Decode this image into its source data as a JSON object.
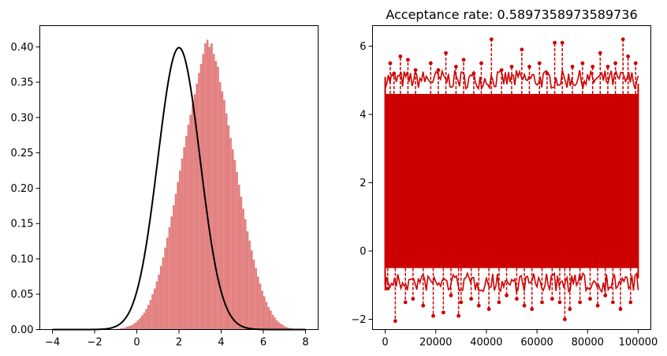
{
  "chart_data": [
    {
      "type": "bar",
      "subtype": "histogram-with-density-curve",
      "title": "",
      "xlabel": "",
      "ylabel": "",
      "xlim": [
        -4.6,
        8.6
      ],
      "ylim": [
        0,
        0.43
      ],
      "xticks": [
        "−4",
        "−2",
        "0",
        "2",
        "4",
        "6",
        "8"
      ],
      "xtick_values": [
        -4,
        -2,
        0,
        2,
        4,
        6,
        8
      ],
      "yticks": [
        "0.00",
        "0.05",
        "0.10",
        "0.15",
        "0.20",
        "0.25",
        "0.30",
        "0.35",
        "0.40"
      ],
      "ytick_values": [
        0,
        0.05,
        0.1,
        0.15,
        0.2,
        0.25,
        0.3,
        0.35,
        0.4
      ],
      "grid": false,
      "bar_color": "#e38080",
      "curve_color": "#000000",
      "histogram": {
        "bin_start": -1.0,
        "bin_width": 0.1,
        "densities": [
          0.001,
          0.001,
          0.002,
          0.002,
          0.003,
          0.004,
          0.005,
          0.006,
          0.008,
          0.01,
          0.013,
          0.016,
          0.02,
          0.024,
          0.029,
          0.035,
          0.042,
          0.05,
          0.058,
          0.068,
          0.078,
          0.09,
          0.102,
          0.116,
          0.13,
          0.145,
          0.16,
          0.176,
          0.192,
          0.209,
          0.225,
          0.242,
          0.258,
          0.274,
          0.29,
          0.304,
          0.318,
          0.333,
          0.348,
          0.363,
          0.376,
          0.39,
          0.405,
          0.41,
          0.4,
          0.405,
          0.39,
          0.38,
          0.372,
          0.35,
          0.337,
          0.325,
          0.306,
          0.289,
          0.271,
          0.255,
          0.24,
          0.223,
          0.205,
          0.188,
          0.171,
          0.156,
          0.139,
          0.126,
          0.112,
          0.099,
          0.087,
          0.075,
          0.065,
          0.055,
          0.047,
          0.039,
          0.032,
          0.027,
          0.021,
          0.017,
          0.013,
          0.01,
          0.008,
          0.006,
          0.004,
          0.003,
          0.002,
          0.002,
          0.001,
          0.001
        ]
      },
      "curve": {
        "name": "",
        "x_start": -4,
        "x_end": 8,
        "mean": 2,
        "std": 1
      }
    },
    {
      "type": "line",
      "subtype": "trace-plot",
      "title": "Acceptance rate: 0.5897358973589736",
      "xlabel": "",
      "ylabel": "",
      "xlim": [
        -5000,
        105000
      ],
      "ylim": [
        -2.3,
        6.6
      ],
      "xticks": [
        "0",
        "20000",
        "40000",
        "60000",
        "80000",
        "100000"
      ],
      "xtick_values": [
        0,
        20000,
        40000,
        60000,
        80000,
        100000
      ],
      "yticks": [
        "−2",
        "0",
        "2",
        "4",
        "6"
      ],
      "ytick_values": [
        -2,
        0,
        2,
        4,
        6
      ],
      "grid": false,
      "line_color": "#cc0000",
      "line_style": "dashed with dot markers",
      "series": [
        {
          "name": "",
          "n_samples": 100000,
          "band_lower": -0.5,
          "band_upper": 4.6,
          "upper_excursions": [
            [
              2000,
              5.5
            ],
            [
              3500,
              5.2
            ],
            [
              6000,
              5.7
            ],
            [
              9000,
              5.6
            ],
            [
              12000,
              5.3
            ],
            [
              18000,
              5.5
            ],
            [
              21000,
              5.3
            ],
            [
              24000,
              5.8
            ],
            [
              28000,
              5.4
            ],
            [
              31000,
              5.6
            ],
            [
              35000,
              5.2
            ],
            [
              38000,
              5.5
            ],
            [
              42000,
              6.2
            ],
            [
              46000,
              5.3
            ],
            [
              50000,
              5.4
            ],
            [
              54000,
              5.9
            ],
            [
              57000,
              5.4
            ],
            [
              61000,
              5.5
            ],
            [
              64000,
              5.2
            ],
            [
              67000,
              6.1
            ],
            [
              70000,
              6.1
            ],
            [
              74000,
              5.4
            ],
            [
              78000,
              5.5
            ],
            [
              82000,
              5.4
            ],
            [
              85000,
              5.8
            ],
            [
              88000,
              5.4
            ],
            [
              91000,
              5.5
            ],
            [
              94000,
              6.2
            ],
            [
              96000,
              5.7
            ],
            [
              99000,
              5.5
            ]
          ],
          "lower_excursions": [
            [
              1000,
              -1.1
            ],
            [
              4000,
              -2.05
            ],
            [
              8000,
              -1.5
            ],
            [
              11000,
              -1.4
            ],
            [
              15000,
              -1.6
            ],
            [
              19000,
              -1.9
            ],
            [
              23000,
              -1.8
            ],
            [
              26000,
              -1.3
            ],
            [
              29000,
              -1.9
            ],
            [
              30000,
              -1.5
            ],
            [
              34000,
              -1.4
            ],
            [
              37000,
              -1.6
            ],
            [
              41000,
              -1.7
            ],
            [
              45000,
              -1.5
            ],
            [
              48000,
              -1.3
            ],
            [
              52000,
              -1.4
            ],
            [
              55000,
              -1.6
            ],
            [
              58000,
              -1.7
            ],
            [
              62000,
              -1.5
            ],
            [
              66000,
              -1.4
            ],
            [
              69000,
              -1.5
            ],
            [
              71000,
              -2.0
            ],
            [
              73000,
              -1.7
            ],
            [
              77000,
              -1.5
            ],
            [
              81000,
              -1.4
            ],
            [
              84000,
              -1.6
            ],
            [
              87000,
              -1.3
            ],
            [
              90000,
              -1.5
            ],
            [
              93000,
              -1.7
            ],
            [
              97000,
              -1.5
            ]
          ]
        }
      ]
    }
  ]
}
